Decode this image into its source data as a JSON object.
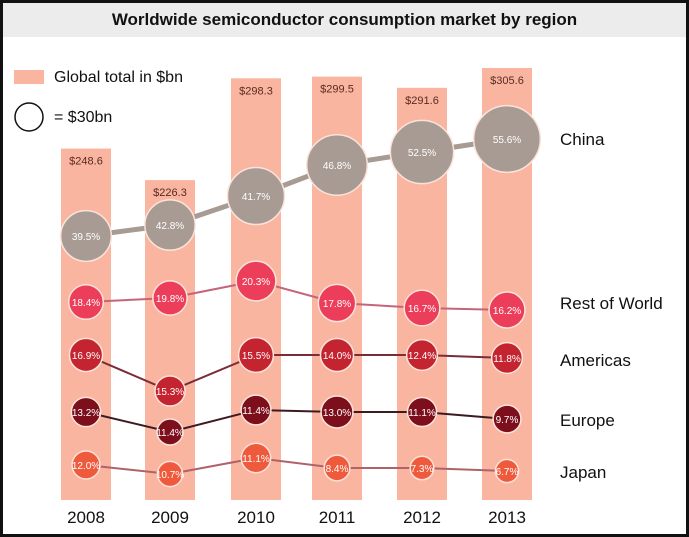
{
  "chart_data": {
    "type": "bar",
    "title": "Worldwide semiconductor consumption market by region",
    "categories": [
      "2008",
      "2009",
      "2010",
      "2011",
      "2012",
      "2013"
    ],
    "bar_series": {
      "name": "Global total in $bn",
      "values": [
        248.6,
        226.3,
        298.3,
        299.5,
        291.6,
        305.6
      ],
      "labels": [
        "$248.6",
        "$226.3",
        "$298.3",
        "$299.5",
        "$291.6",
        "$305.6"
      ],
      "color": "#f9b5a0"
    },
    "bubble_legend": "= $30bn",
    "bubble_scale_bn": 30,
    "series": [
      {
        "name": "China",
        "color": "#a89b93",
        "line_color": "#a89b93",
        "values": [
          39.5,
          42.8,
          41.7,
          46.8,
          52.5,
          55.6
        ],
        "labels": [
          "39.5%",
          "42.8%",
          "41.7%",
          "46.8%",
          "52.5%",
          "55.6%"
        ]
      },
      {
        "name": "Rest of World",
        "color": "#ec3d5a",
        "line_color": "#c4657a",
        "values": [
          18.4,
          19.8,
          20.3,
          17.8,
          16.7,
          16.2
        ],
        "labels": [
          "18.4%",
          "19.8%",
          "20.3%",
          "17.8%",
          "16.7%",
          "16.2%"
        ]
      },
      {
        "name": "Americas",
        "color": "#c42330",
        "line_color": "#7a2d36",
        "values": [
          16.9,
          15.3,
          15.5,
          14.0,
          12.4,
          11.8
        ],
        "labels": [
          "16.9%",
          "15.3%",
          "15.5%",
          "14.0%",
          "12.4%",
          "11.8%"
        ]
      },
      {
        "name": "Europe",
        "color": "#7d0f1c",
        "line_color": "#3d1a20",
        "values": [
          13.2,
          11.4,
          11.4,
          13.0,
          11.1,
          9.7
        ],
        "labels": [
          "13.2%",
          "11.4%",
          "11.4%",
          "13.0%",
          "11.1%",
          "9.7%"
        ]
      },
      {
        "name": "Japan",
        "color": "#f05a3c",
        "line_color": "#b0626a",
        "values": [
          12.0,
          10.7,
          11.1,
          8.4,
          7.3,
          6.7
        ],
        "labels": [
          "12.0%",
          "10.7%",
          "11.1%",
          "8.4%",
          "7.3%",
          "6.7%"
        ]
      }
    ],
    "legend": [
      "Global total in $bn",
      "= $30bn"
    ],
    "xlabel": "",
    "ylabel": "",
    "ylim_bn": [
      0,
      320
    ],
    "grid": false,
    "legend_position": "top-left"
  }
}
